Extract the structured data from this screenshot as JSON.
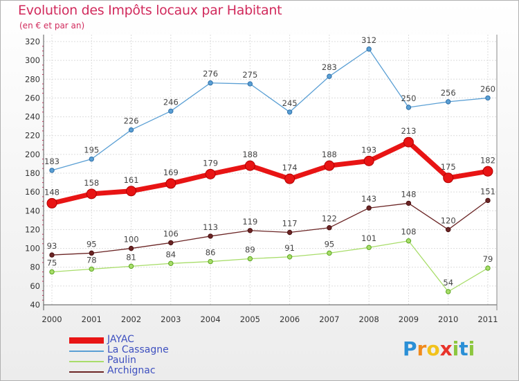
{
  "header": {
    "title": "Evolution des Impôts locaux par Habitant",
    "subtitle": "(en € et par an)"
  },
  "brand": {
    "logo": [
      "P",
      "r",
      "o",
      "x",
      "i",
      "t",
      "i"
    ]
  },
  "chart_data": {
    "type": "line",
    "title": "Evolution des Impôts locaux par Habitant",
    "subtitle": "(en € et par an)",
    "xlabel": "",
    "ylabel": "",
    "categories": [
      "2000",
      "2001",
      "2002",
      "2003",
      "2004",
      "2005",
      "2006",
      "2007",
      "2008",
      "2009",
      "2010",
      "2011"
    ],
    "ylim": [
      40,
      320
    ],
    "yticks": [
      40,
      60,
      80,
      100,
      120,
      140,
      160,
      180,
      200,
      220,
      240,
      260,
      280,
      300,
      320
    ],
    "grid": true,
    "legend_position": "bottom-left",
    "series": [
      {
        "name": "La Cassagne",
        "color": "#5a9fd4",
        "weight": "thin",
        "values": [
          183,
          195,
          226,
          246,
          276,
          275,
          245,
          283,
          312,
          250,
          256,
          260
        ]
      },
      {
        "name": "Paulin",
        "color": "#a8dd6a",
        "weight": "thin",
        "values": [
          75,
          78,
          81,
          84,
          86,
          89,
          91,
          95,
          101,
          108,
          54,
          79
        ]
      },
      {
        "name": "Archignac",
        "color": "#6b2525",
        "weight": "thin",
        "values": [
          93,
          95,
          100,
          106,
          113,
          119,
          117,
          122,
          143,
          148,
          120,
          151
        ]
      },
      {
        "name": "JAYAC",
        "color": "#e81414",
        "weight": "thick",
        "values": [
          148,
          158,
          161,
          169,
          179,
          188,
          174,
          188,
          193,
          213,
          175,
          182
        ]
      }
    ],
    "legend_order": [
      "JAYAC",
      "La Cassagne",
      "Paulin",
      "Archignac"
    ]
  }
}
